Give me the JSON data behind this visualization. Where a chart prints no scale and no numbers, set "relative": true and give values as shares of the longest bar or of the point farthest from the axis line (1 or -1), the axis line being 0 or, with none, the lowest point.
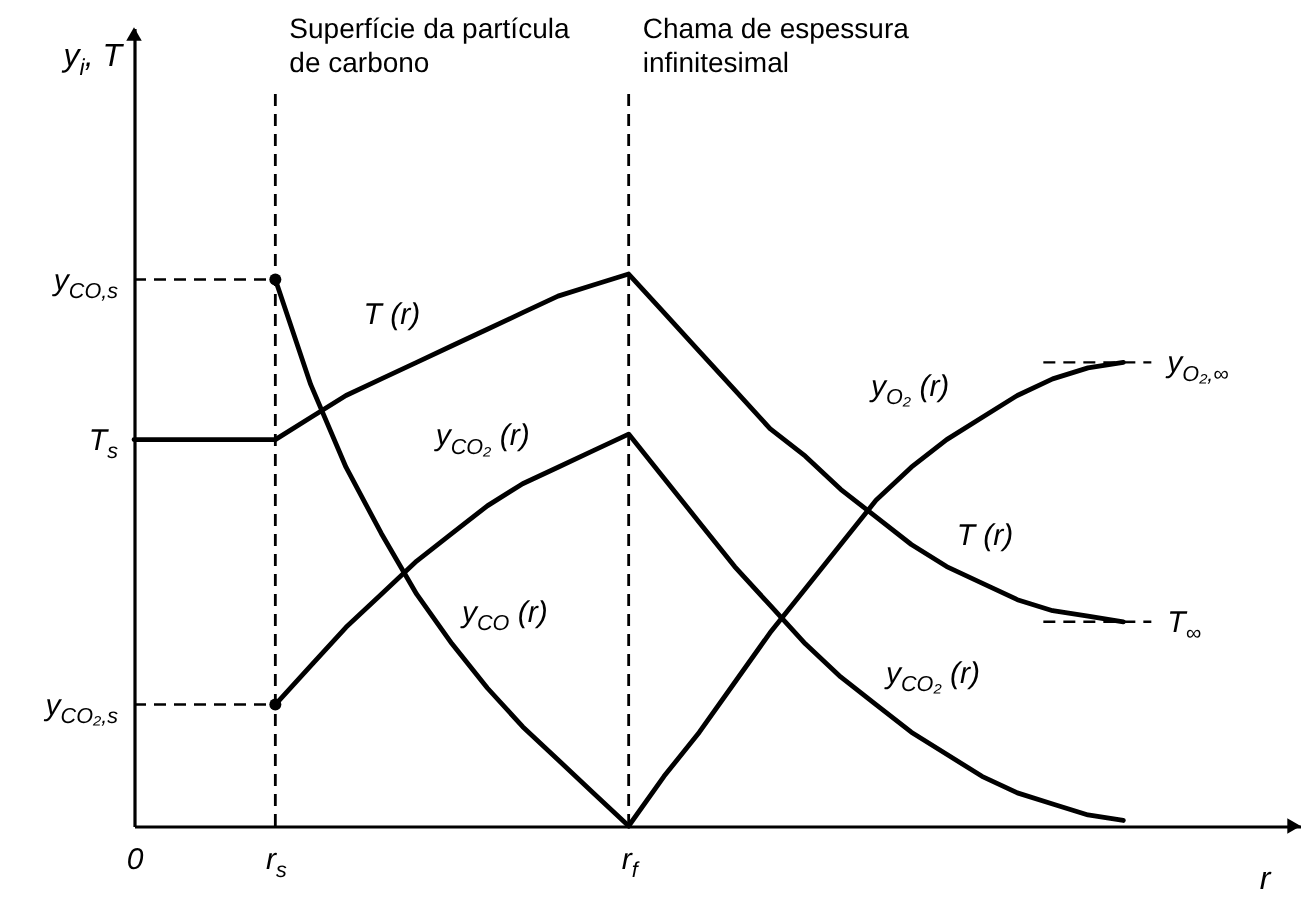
{
  "chart_data": {
    "type": "line",
    "relative": true,
    "xlabel": "r",
    "categories": [
      "0",
      null,
      null,
      null,
      "r$_{s}$",
      null,
      null,
      null,
      null,
      null,
      null,
      null,
      null,
      null,
      "r$_{f}$",
      null,
      null,
      null,
      null,
      null,
      null,
      null,
      null,
      null,
      null,
      null,
      null,
      null,
      null,
      null,
      null,
      null,
      null,
      null
    ],
    "series": [
      {
        "name": "T (r)",
        "color": "#000000",
        "values": [
          0.7,
          0.7,
          0.7,
          0.7,
          0.7,
          0.74,
          0.78,
          0.81,
          0.84,
          0.87,
          0.9,
          0.93,
          0.96,
          0.98,
          1.0,
          0.93,
          0.86,
          0.79,
          0.72,
          0.67,
          0.61,
          0.56,
          0.51,
          0.47,
          0.44,
          0.41,
          0.39,
          0.38,
          0.37,
          null,
          null,
          null,
          null,
          null
        ]
      },
      {
        "name": "y$_{CO}$ (r)",
        "color": "#000000",
        "values": [
          null,
          null,
          null,
          null,
          0.99,
          0.8,
          0.65,
          0.53,
          0.42,
          0.33,
          0.25,
          0.18,
          0.12,
          0.06,
          0,
          null,
          null,
          null,
          null,
          null,
          null,
          null,
          null,
          null,
          null,
          null,
          null,
          null,
          null,
          null,
          null,
          null,
          null,
          null
        ]
      },
      {
        "name": "y$_{CO₂}$ (r)",
        "color": "#000000",
        "values": [
          null,
          null,
          null,
          null,
          0.22,
          0.29,
          0.36,
          0.42,
          0.48,
          0.53,
          0.58,
          0.62,
          0.65,
          0.68,
          0.71,
          0.63,
          0.55,
          0.47,
          0.4,
          0.33,
          0.27,
          0.22,
          0.17,
          0.13,
          0.09,
          0.06,
          0.04,
          0.02,
          0.01,
          null,
          null,
          null,
          null,
          null
        ]
      },
      {
        "name": "y$_{O₂}$ (r)",
        "color": "#000000",
        "values": [
          null,
          null,
          null,
          null,
          null,
          null,
          null,
          null,
          null,
          null,
          null,
          null,
          null,
          null,
          0,
          0.09,
          0.17,
          0.26,
          0.35,
          0.43,
          0.51,
          0.59,
          0.65,
          0.7,
          0.74,
          0.78,
          0.81,
          0.83,
          0.84,
          null,
          null,
          null,
          null,
          null
        ]
      },
      {
        "type": "scatter",
        "color": "#000000",
        "values": [
          null,
          null,
          null,
          null,
          0.99,
          null,
          null,
          null,
          null,
          null,
          null,
          null,
          null,
          null,
          null,
          null,
          null,
          null,
          null,
          null,
          null,
          null,
          null,
          null,
          null,
          null,
          null,
          null,
          null,
          null,
          null,
          null,
          null,
          null
        ]
      },
      {
        "type": "scatter",
        "color": "#000000",
        "values": [
          null,
          null,
          null,
          null,
          0.22,
          null,
          null,
          null,
          null,
          null,
          null,
          null,
          null,
          null,
          null,
          null,
          null,
          null,
          null,
          null,
          null,
          null,
          null,
          null,
          null,
          null,
          null,
          null,
          null,
          null,
          null,
          null,
          null,
          null
        ]
      }
    ],
    "ref_lines": [
      {
        "axis": "x",
        "value": "r$_{s}$",
        "label": "Superfície da partícula de carbono",
        "line_style": "dashed"
      },
      {
        "axis": "x",
        "value": "r$_{f}$",
        "label": "Chama de espessura infinitesimal",
        "line_style": "dashed"
      },
      {
        "axis": "y",
        "value": 0.99,
        "label": "y$_{CO,s}$",
        "line_style": "dashed"
      },
      {
        "axis": "y",
        "value": 0.22,
        "label": "y$_{CO₂,s}$",
        "line_style": "dashed"
      },
      {
        "axis": "y",
        "value": 0.84,
        "label": "y$_{O₂,∞}$",
        "line_style": "dashed"
      },
      {
        "axis": "y",
        "value": 0.37,
        "label": "T$_{∞}$",
        "line_style": "dashed"
      }
    ],
    "annotations": [
      "y$_{i}$, T",
      {
        "text": "T$_{s}$",
        "x": "0",
        "y": 0.7
      }
    ]
  }
}
